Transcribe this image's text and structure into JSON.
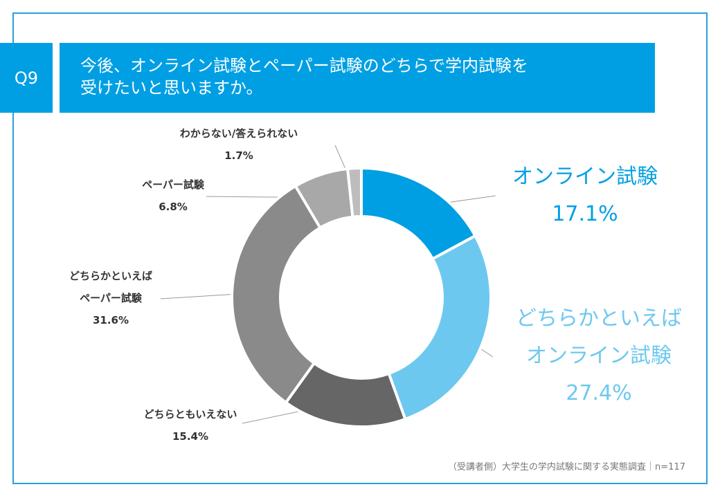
{
  "question": {
    "number": "Q9",
    "title_line1": "今後、オンライン試験とペーパー試験のどちらで学内試験を",
    "title_line2": "受けたいと思いますか。"
  },
  "chart_data": {
    "type": "pie",
    "donut": true,
    "categories": [
      "オンライン試験",
      "どちらかといえば オンライン試験",
      "どちらともいえない",
      "どちらかといえば ペーパー試験",
      "ペーパー試験",
      "わからない/答えられない"
    ],
    "values": [
      17.1,
      27.4,
      15.4,
      31.6,
      6.8,
      1.7
    ],
    "colors": [
      "#009fe3",
      "#6dc8ef",
      "#666666",
      "#8a8a8a",
      "#a8a8a8",
      "#bdbdbd"
    ],
    "labels": [
      {
        "lines": [
          "オンライン試験"
        ],
        "value": "17.1%",
        "color": "#009fe3"
      },
      {
        "lines": [
          "どちらかといえば",
          "オンライン試験"
        ],
        "value": "27.4%",
        "color": "#6dc8ef"
      },
      {
        "lines": [
          "どちらともいえない"
        ],
        "value": "15.4%",
        "color": "#333333"
      },
      {
        "lines": [
          "どちらかといえば",
          "ペーパー試験"
        ],
        "value": "31.6%",
        "color": "#333333"
      },
      {
        "lines": [
          "ペーパー試験"
        ],
        "value": "6.8%",
        "color": "#333333"
      },
      {
        "lines": [
          "わからない/答えられない"
        ],
        "value": "1.7%",
        "color": "#333333"
      }
    ]
  },
  "source": "（受講者側）大学生の学内試験に関する実態調査｜n=117"
}
